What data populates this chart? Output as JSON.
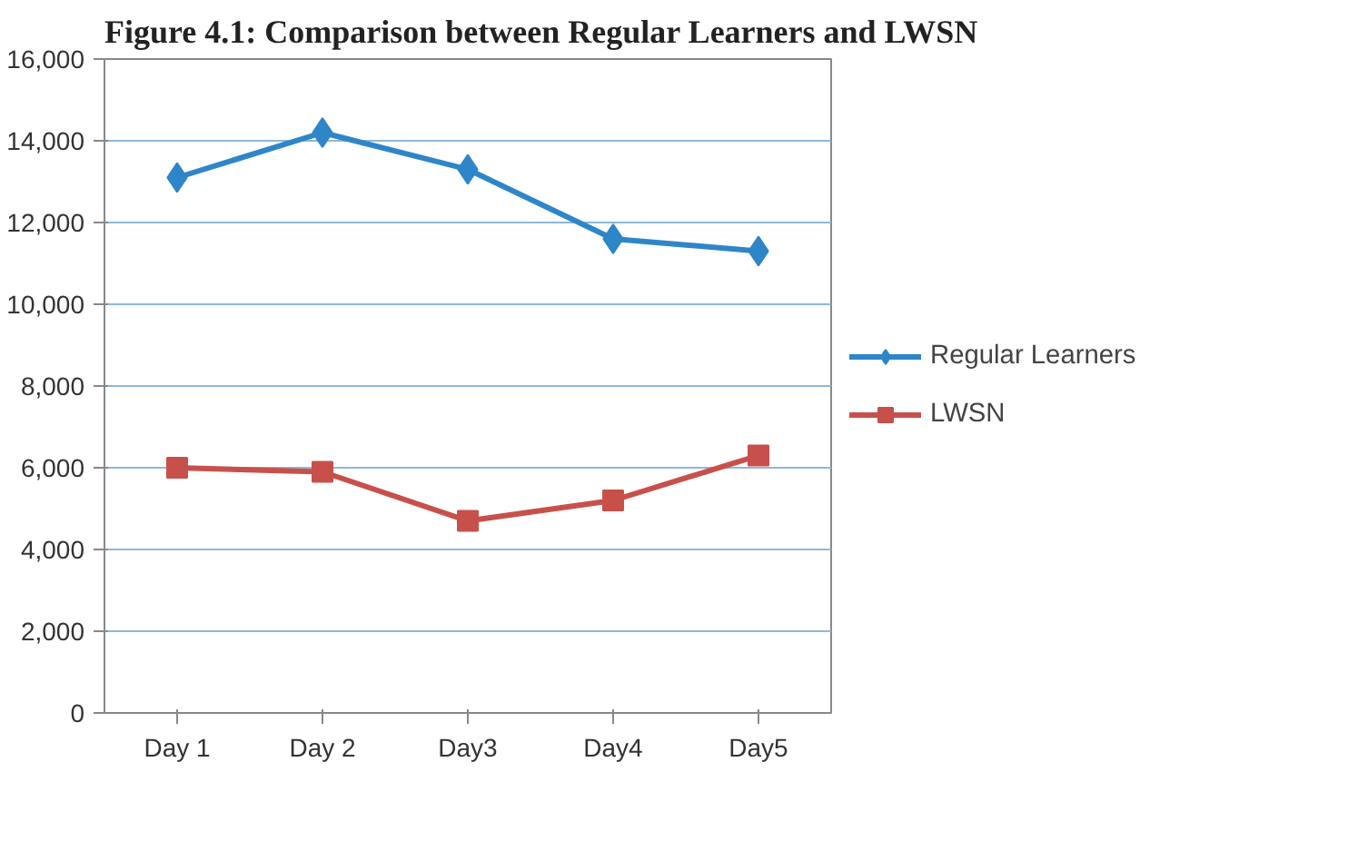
{
  "chart_data": {
    "type": "line",
    "title": "Figure 4.1: Comparison between Regular Learners and LWSN",
    "categories": [
      "Day 1",
      "Day 2",
      "Day3",
      "Day4",
      "Day5"
    ],
    "series": [
      {
        "name": "Regular Learners",
        "color": "#2e86c8",
        "marker": "diamond",
        "values": [
          13100,
          14200,
          13300,
          11600,
          11300
        ]
      },
      {
        "name": "LWSN",
        "color": "#c8504b",
        "marker": "square",
        "values": [
          6000,
          5900,
          4700,
          5200,
          6300
        ]
      }
    ],
    "ylim": [
      0,
      16000
    ],
    "yticks": [
      {
        "value": 0,
        "label": "0"
      },
      {
        "value": 2000,
        "label": "2,000"
      },
      {
        "value": 4000,
        "label": "4,000"
      },
      {
        "value": 6000,
        "label": "6,000"
      },
      {
        "value": 8000,
        "label": "8,000"
      },
      {
        "value": 10000,
        "label": "10,000"
      },
      {
        "value": 12000,
        "label": "12,000"
      },
      {
        "value": 14000,
        "label": "14,000"
      },
      {
        "value": 16000,
        "label": "16,000"
      }
    ],
    "grid": "y",
    "legend": "right"
  }
}
